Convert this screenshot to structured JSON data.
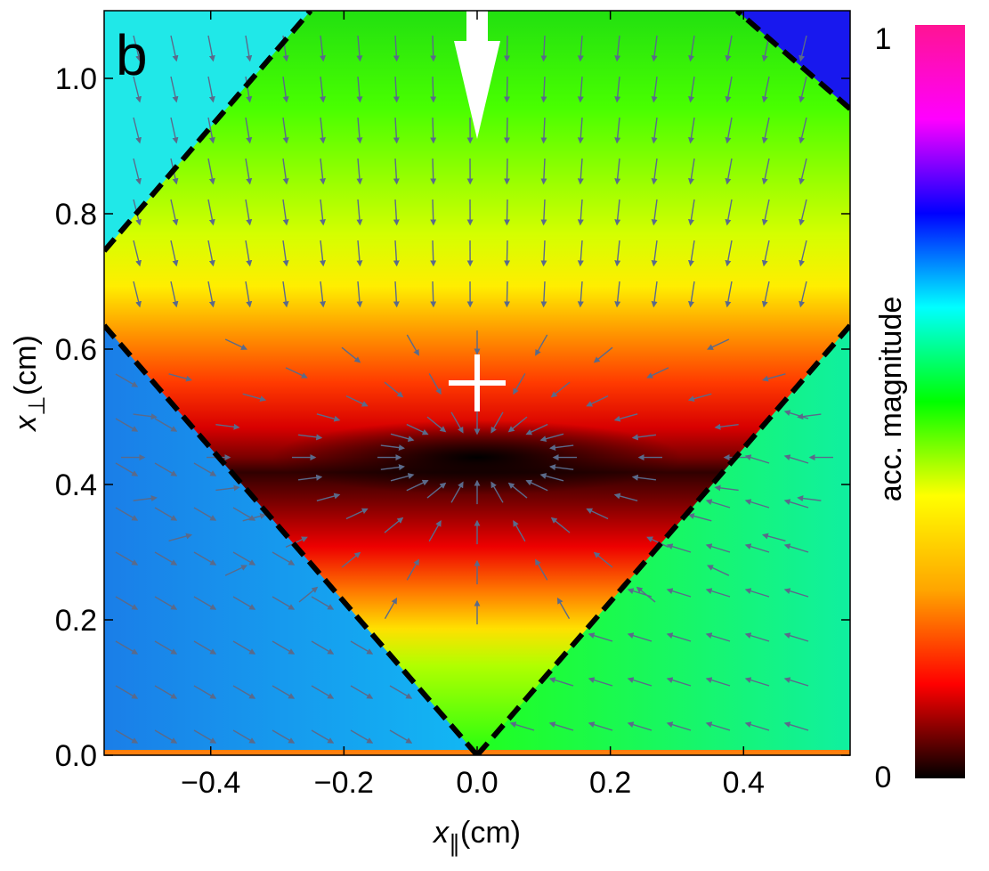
{
  "chart_data": {
    "type": "heatmap",
    "title": "",
    "panel_label": "b",
    "xlabel": {
      "symbol": "x",
      "subscript": "∥",
      "unit": "(cm)"
    },
    "ylabel": {
      "symbol": "x",
      "subscript": "⊥",
      "unit": "(cm)"
    },
    "xlim": [
      -0.56,
      0.56
    ],
    "ylim": [
      0.0,
      1.1
    ],
    "xticks": [
      -0.4,
      -0.2,
      0.0,
      0.2,
      0.4
    ],
    "xtick_labels": [
      "−0.4",
      "−0.2",
      "0.0",
      "0.2",
      "0.4"
    ],
    "yticks": [
      0.0,
      0.2,
      0.4,
      0.6,
      0.8,
      1.0
    ],
    "ytick_labels": [
      "0.0",
      "0.2",
      "0.4",
      "0.6",
      "0.8",
      "1.0"
    ],
    "colorbar": {
      "label": "acc. magnitude",
      "min_label": "0",
      "max_label": "1",
      "min": 0,
      "max": 1,
      "colormap": [
        "#000000",
        "#ff0000",
        "#ffa500",
        "#ffff00",
        "#00ff00",
        "#00ffff",
        "#0000ff",
        "#ff00ff",
        "#ff1493"
      ]
    },
    "trap_minimum": {
      "x": 0.0,
      "y": 0.44
    },
    "marked_point": {
      "x": 0.0,
      "y": 0.55,
      "marker": "+"
    },
    "boundary_lines": [
      {
        "x": [
          -0.56,
          0.0
        ],
        "y": [
          0.635,
          0.0
        ]
      },
      {
        "x": [
          0.0,
          0.56
        ],
        "y": [
          0.0,
          0.635
        ]
      },
      {
        "x": [
          -0.56,
          -0.25
        ],
        "y": [
          0.745,
          1.1
        ]
      },
      {
        "x": [
          0.56,
          0.39
        ],
        "y": [
          0.955,
          1.1
        ]
      }
    ],
    "surface_line": {
      "y": 0.0,
      "color": "#ff7f0e"
    },
    "incoming_arrow": {
      "x": 0.0,
      "y_from": 1.1,
      "y_to": 0.95,
      "color": "#ffffff"
    },
    "stream_color": "#5a6a8a"
  }
}
